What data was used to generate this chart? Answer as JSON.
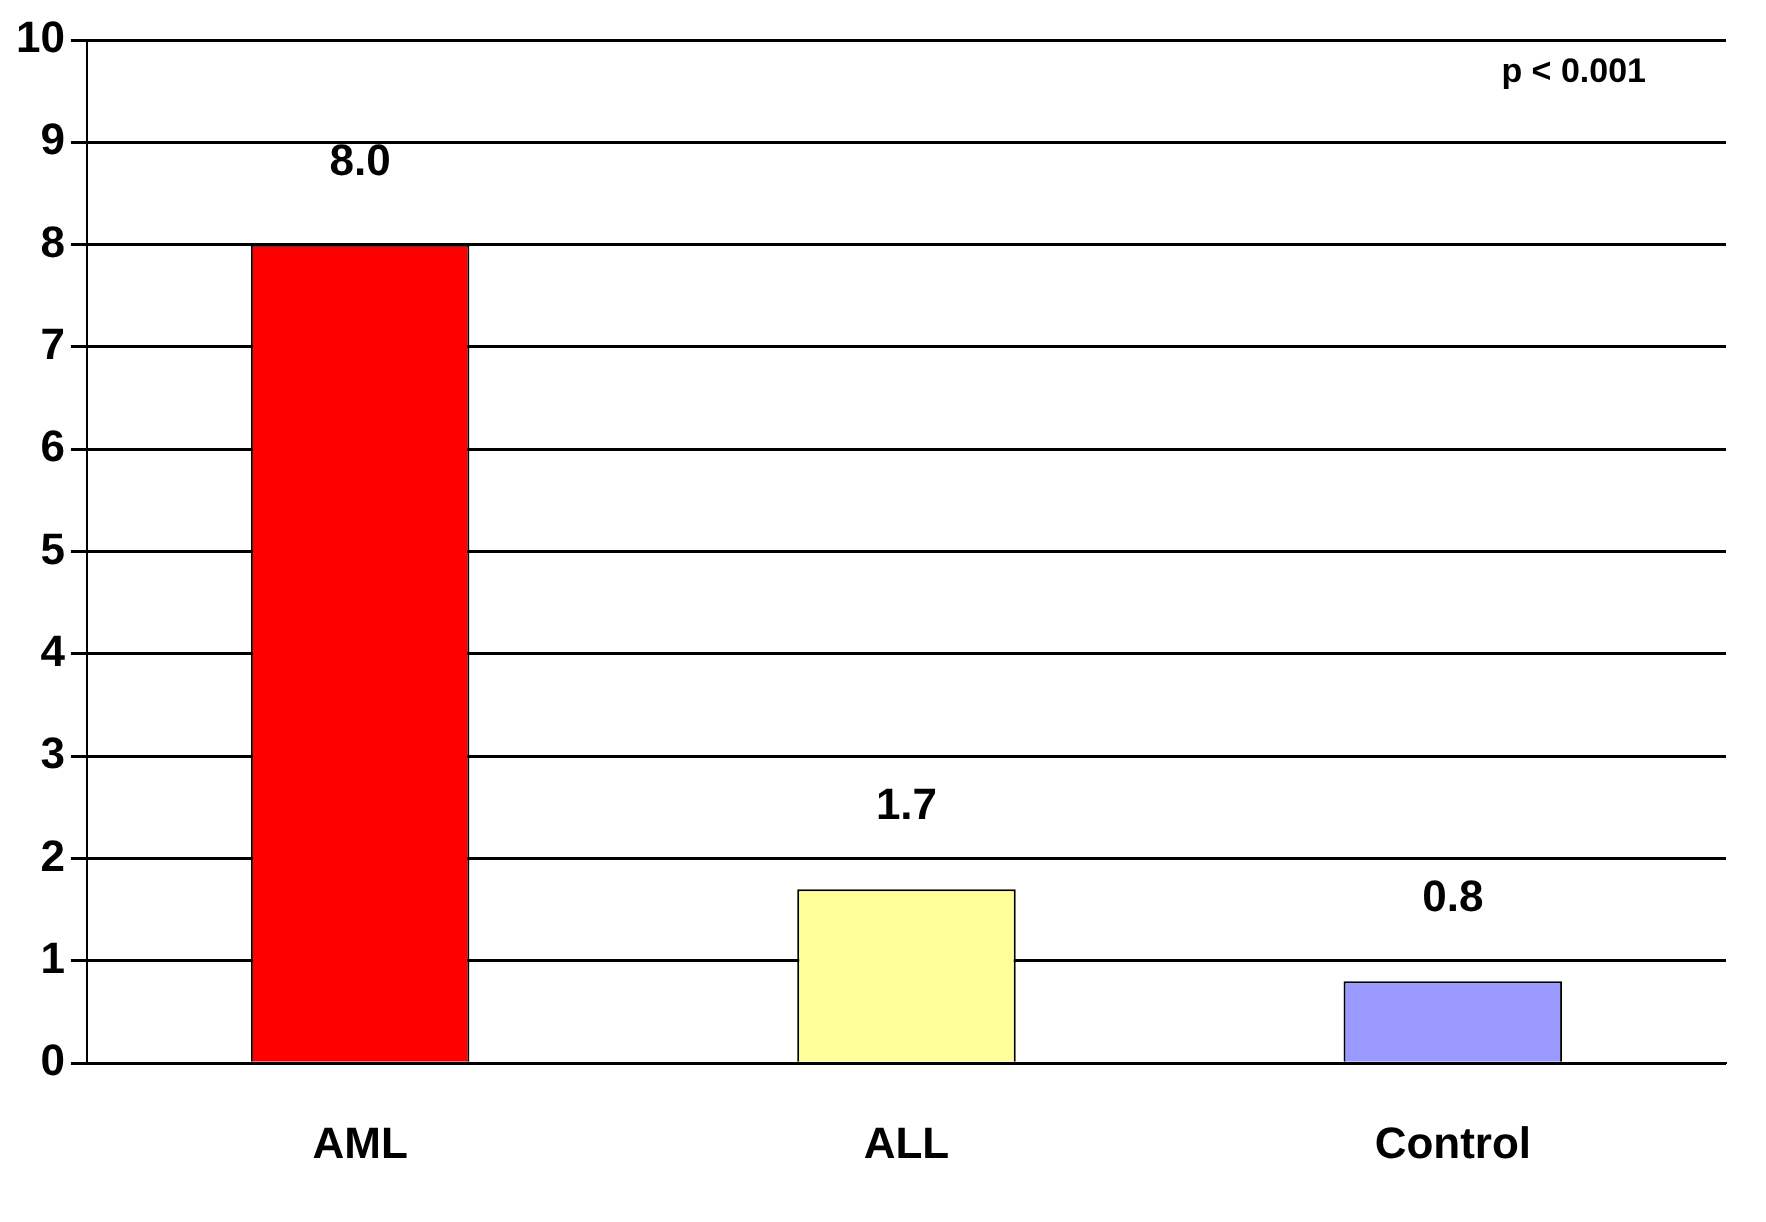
{
  "chart_data": {
    "type": "bar",
    "categories": [
      "AML",
      "ALL",
      "Control"
    ],
    "values": [
      8.0,
      1.7,
      0.8
    ],
    "colors": [
      "#ff0000",
      "#ffff99",
      "#9999ff"
    ],
    "value_labels": [
      "8.0",
      "1.7",
      "0.8"
    ],
    "ylim": [
      0,
      10
    ],
    "yticks": [
      0,
      1,
      2,
      3,
      4,
      5,
      6,
      7,
      8,
      9,
      10
    ],
    "grid": "y",
    "legend": false,
    "annotations": [
      "p < 0.001"
    ]
  }
}
